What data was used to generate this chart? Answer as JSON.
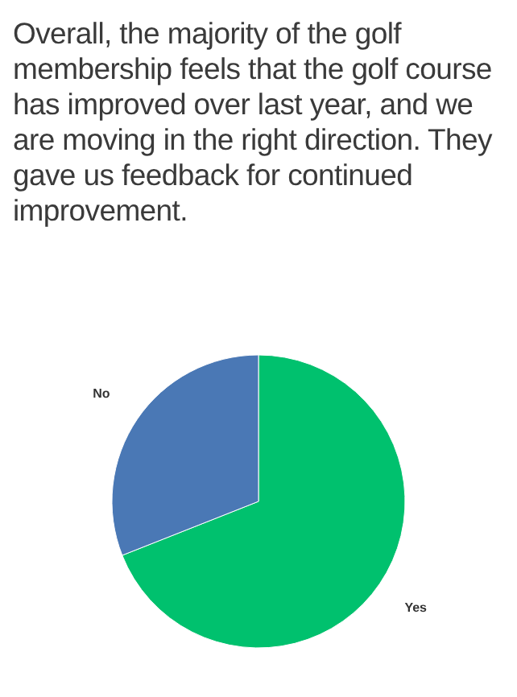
{
  "chart_data": {
    "type": "pie",
    "title": "Overall, the majority of the golf membership feels that the golf course has improved over last year, and we are moving in the right direction.  They gave us feedback for continued improvement.",
    "categories": [
      "Yes",
      "No"
    ],
    "values": [
      69,
      31
    ],
    "colors": [
      "#00c16e",
      "#4a78b5"
    ]
  }
}
